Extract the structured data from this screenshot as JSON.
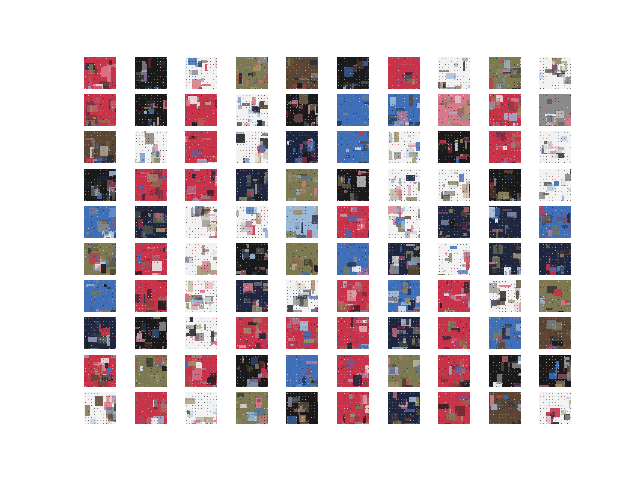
{
  "figure": {
    "description_kind": "grid of generated sample images",
    "rows": 10,
    "cols": 10
  },
  "palette": {
    "background": "#ffffff",
    "tones": {
      "red": "#c8334a",
      "pink": "#d97a8c",
      "navy": "#1f2740",
      "blue": "#3f6fb8",
      "sky": "#9bb8d8",
      "white": "#f2f2f2",
      "grey": "#8a8a8a",
      "dark": "#1a1a1a",
      "olive": "#7d7a52",
      "brown": "#5a4632",
      "tan": "#a0906a"
    }
  },
  "tiles": [
    [
      "red",
      "dark",
      "white",
      "olive",
      "brown",
      "dark",
      "red",
      "white",
      "olive",
      "white"
    ],
    [
      "red",
      "dark",
      "red",
      "white",
      "dark",
      "blue",
      "blue",
      "pink",
      "red",
      "grey"
    ],
    [
      "brown",
      "white",
      "red",
      "white",
      "navy",
      "blue",
      "white",
      "dark",
      "red",
      "white"
    ],
    [
      "dark",
      "red",
      "red",
      "navy",
      "olive",
      "dark",
      "white",
      "white",
      "dark",
      "white"
    ],
    [
      "blue",
      "navy",
      "white",
      "white",
      "sky",
      "red",
      "white",
      "navy",
      "navy",
      "blue"
    ],
    [
      "olive",
      "red",
      "white",
      "dark",
      "olive",
      "blue",
      "navy",
      "white",
      "navy",
      "navy"
    ],
    [
      "blue",
      "red",
      "white",
      "navy",
      "white",
      "red",
      "blue",
      "red",
      "white",
      "olive"
    ],
    [
      "navy",
      "dark",
      "white",
      "red",
      "red",
      "red",
      "navy",
      "red",
      "blue",
      "brown"
    ],
    [
      "red",
      "olive",
      "red",
      "dark",
      "blue",
      "red",
      "olive",
      "red",
      "dark",
      "dark"
    ],
    [
      "white",
      "red",
      "white",
      "olive",
      "dark",
      "red",
      "navy",
      "red",
      "brown",
      "white"
    ]
  ]
}
